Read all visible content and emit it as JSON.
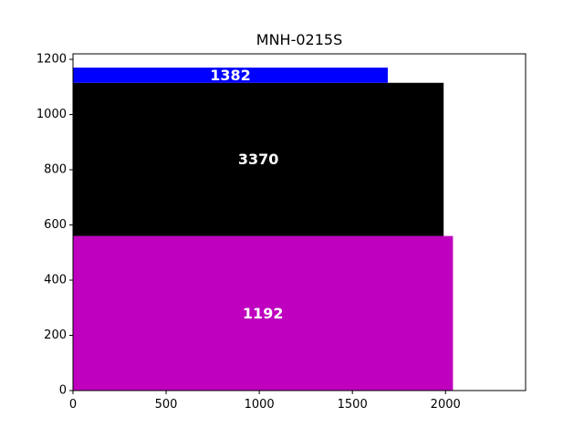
{
  "chart_data": {
    "type": "bar",
    "orientation": "horizontal-stacked-area-blocks",
    "title": "MNH-0215S",
    "xlabel": "",
    "ylabel": "",
    "xlim": [
      0,
      2430
    ],
    "ylim": [
      0,
      1220
    ],
    "xticks": [
      0,
      500,
      1000,
      1500,
      2000
    ],
    "yticks": [
      0,
      200,
      400,
      600,
      800,
      1000,
      1200
    ],
    "xtick_labels": [
      "0",
      "500",
      "1000",
      "1500",
      "2000"
    ],
    "ytick_labels": [
      "0",
      "200",
      "400",
      "600",
      "800",
      "1000",
      "1200"
    ],
    "grid": false,
    "blocks": [
      {
        "label": "1192",
        "x0": 0,
        "x1": 2040,
        "y0": 0,
        "y1": 560,
        "color": "#bf00bf"
      },
      {
        "label": "3370",
        "x0": 0,
        "x1": 1990,
        "y0": 560,
        "y1": 1115,
        "color": "#000000"
      },
      {
        "label": "1382",
        "x0": 0,
        "x1": 1690,
        "y0": 1115,
        "y1": 1170,
        "color": "#0000ff"
      }
    ]
  }
}
